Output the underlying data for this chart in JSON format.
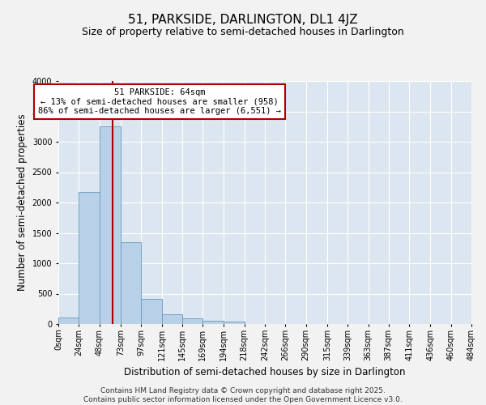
{
  "title": "51, PARKSIDE, DARLINGTON, DL1 4JZ",
  "subtitle": "Size of property relative to semi-detached houses in Darlington",
  "xlabel": "Distribution of semi-detached houses by size in Darlington",
  "ylabel": "Number of semi-detached properties",
  "footer_line1": "Contains HM Land Registry data © Crown copyright and database right 2025.",
  "footer_line2": "Contains public sector information licensed under the Open Government Licence v3.0.",
  "annotation_title": "51 PARKSIDE: 64sqm",
  "annotation_line1": "← 13% of semi-detached houses are smaller (958)",
  "annotation_line2": "86% of semi-detached houses are larger (6,551) →",
  "property_size_sqm": 64,
  "bins": [
    0,
    24,
    48,
    73,
    97,
    121,
    145,
    169,
    194,
    218,
    242,
    266,
    290,
    315,
    339,
    363,
    387,
    411,
    436,
    460,
    484
  ],
  "bin_labels": [
    "0sqm",
    "24sqm",
    "48sqm",
    "73sqm",
    "97sqm",
    "121sqm",
    "145sqm",
    "169sqm",
    "194sqm",
    "218sqm",
    "242sqm",
    "266sqm",
    "290sqm",
    "315sqm",
    "339sqm",
    "363sqm",
    "387sqm",
    "411sqm",
    "436sqm",
    "460sqm",
    "484sqm"
  ],
  "counts": [
    110,
    2170,
    3250,
    1350,
    410,
    165,
    100,
    55,
    45,
    0,
    0,
    0,
    0,
    0,
    0,
    0,
    0,
    0,
    0,
    0
  ],
  "bar_color": "#b8d0e8",
  "bar_edge_color": "#6699bb",
  "vline_x": 64,
  "vline_color": "#aa0000",
  "annotation_box_color": "#aa0000",
  "ylim": [
    0,
    4000
  ],
  "yticks": [
    0,
    500,
    1000,
    1500,
    2000,
    2500,
    3000,
    3500,
    4000
  ],
  "background_color": "#dce6f0",
  "grid_color": "#ffffff",
  "title_fontsize": 11,
  "subtitle_fontsize": 9,
  "axis_label_fontsize": 8.5,
  "tick_fontsize": 7,
  "footer_fontsize": 6.5,
  "annotation_fontsize": 7.5
}
